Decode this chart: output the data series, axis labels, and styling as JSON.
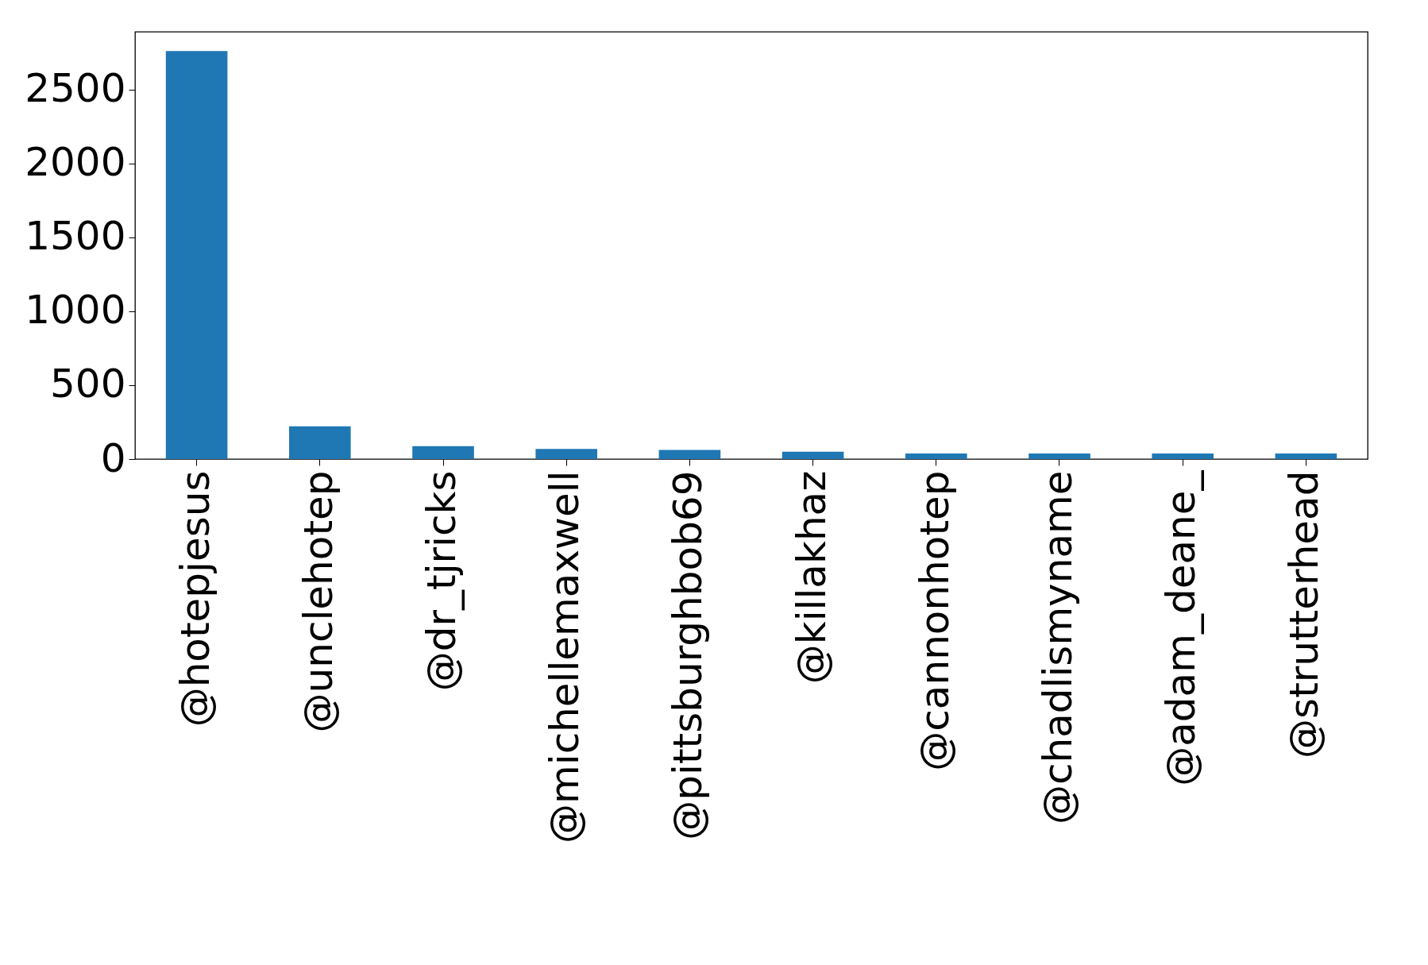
{
  "chart_data": {
    "type": "bar",
    "categories": [
      "@hotepjesus",
      "@unclehotep",
      "@dr_tjricks",
      "@michellemaxwell",
      "@pittsburghbob69",
      "@killakhaz",
      "@cannonhotep",
      "@chadlismyname",
      "@adam_deane_",
      "@strutterhead"
    ],
    "values": [
      2760,
      222,
      87,
      68,
      62,
      50,
      38,
      37,
      37,
      37
    ],
    "color": "#1f77b4",
    "ylim": [
      0,
      2890
    ],
    "yticks": [
      0,
      500,
      1000,
      1500,
      2000,
      2500
    ],
    "grid": false
  }
}
